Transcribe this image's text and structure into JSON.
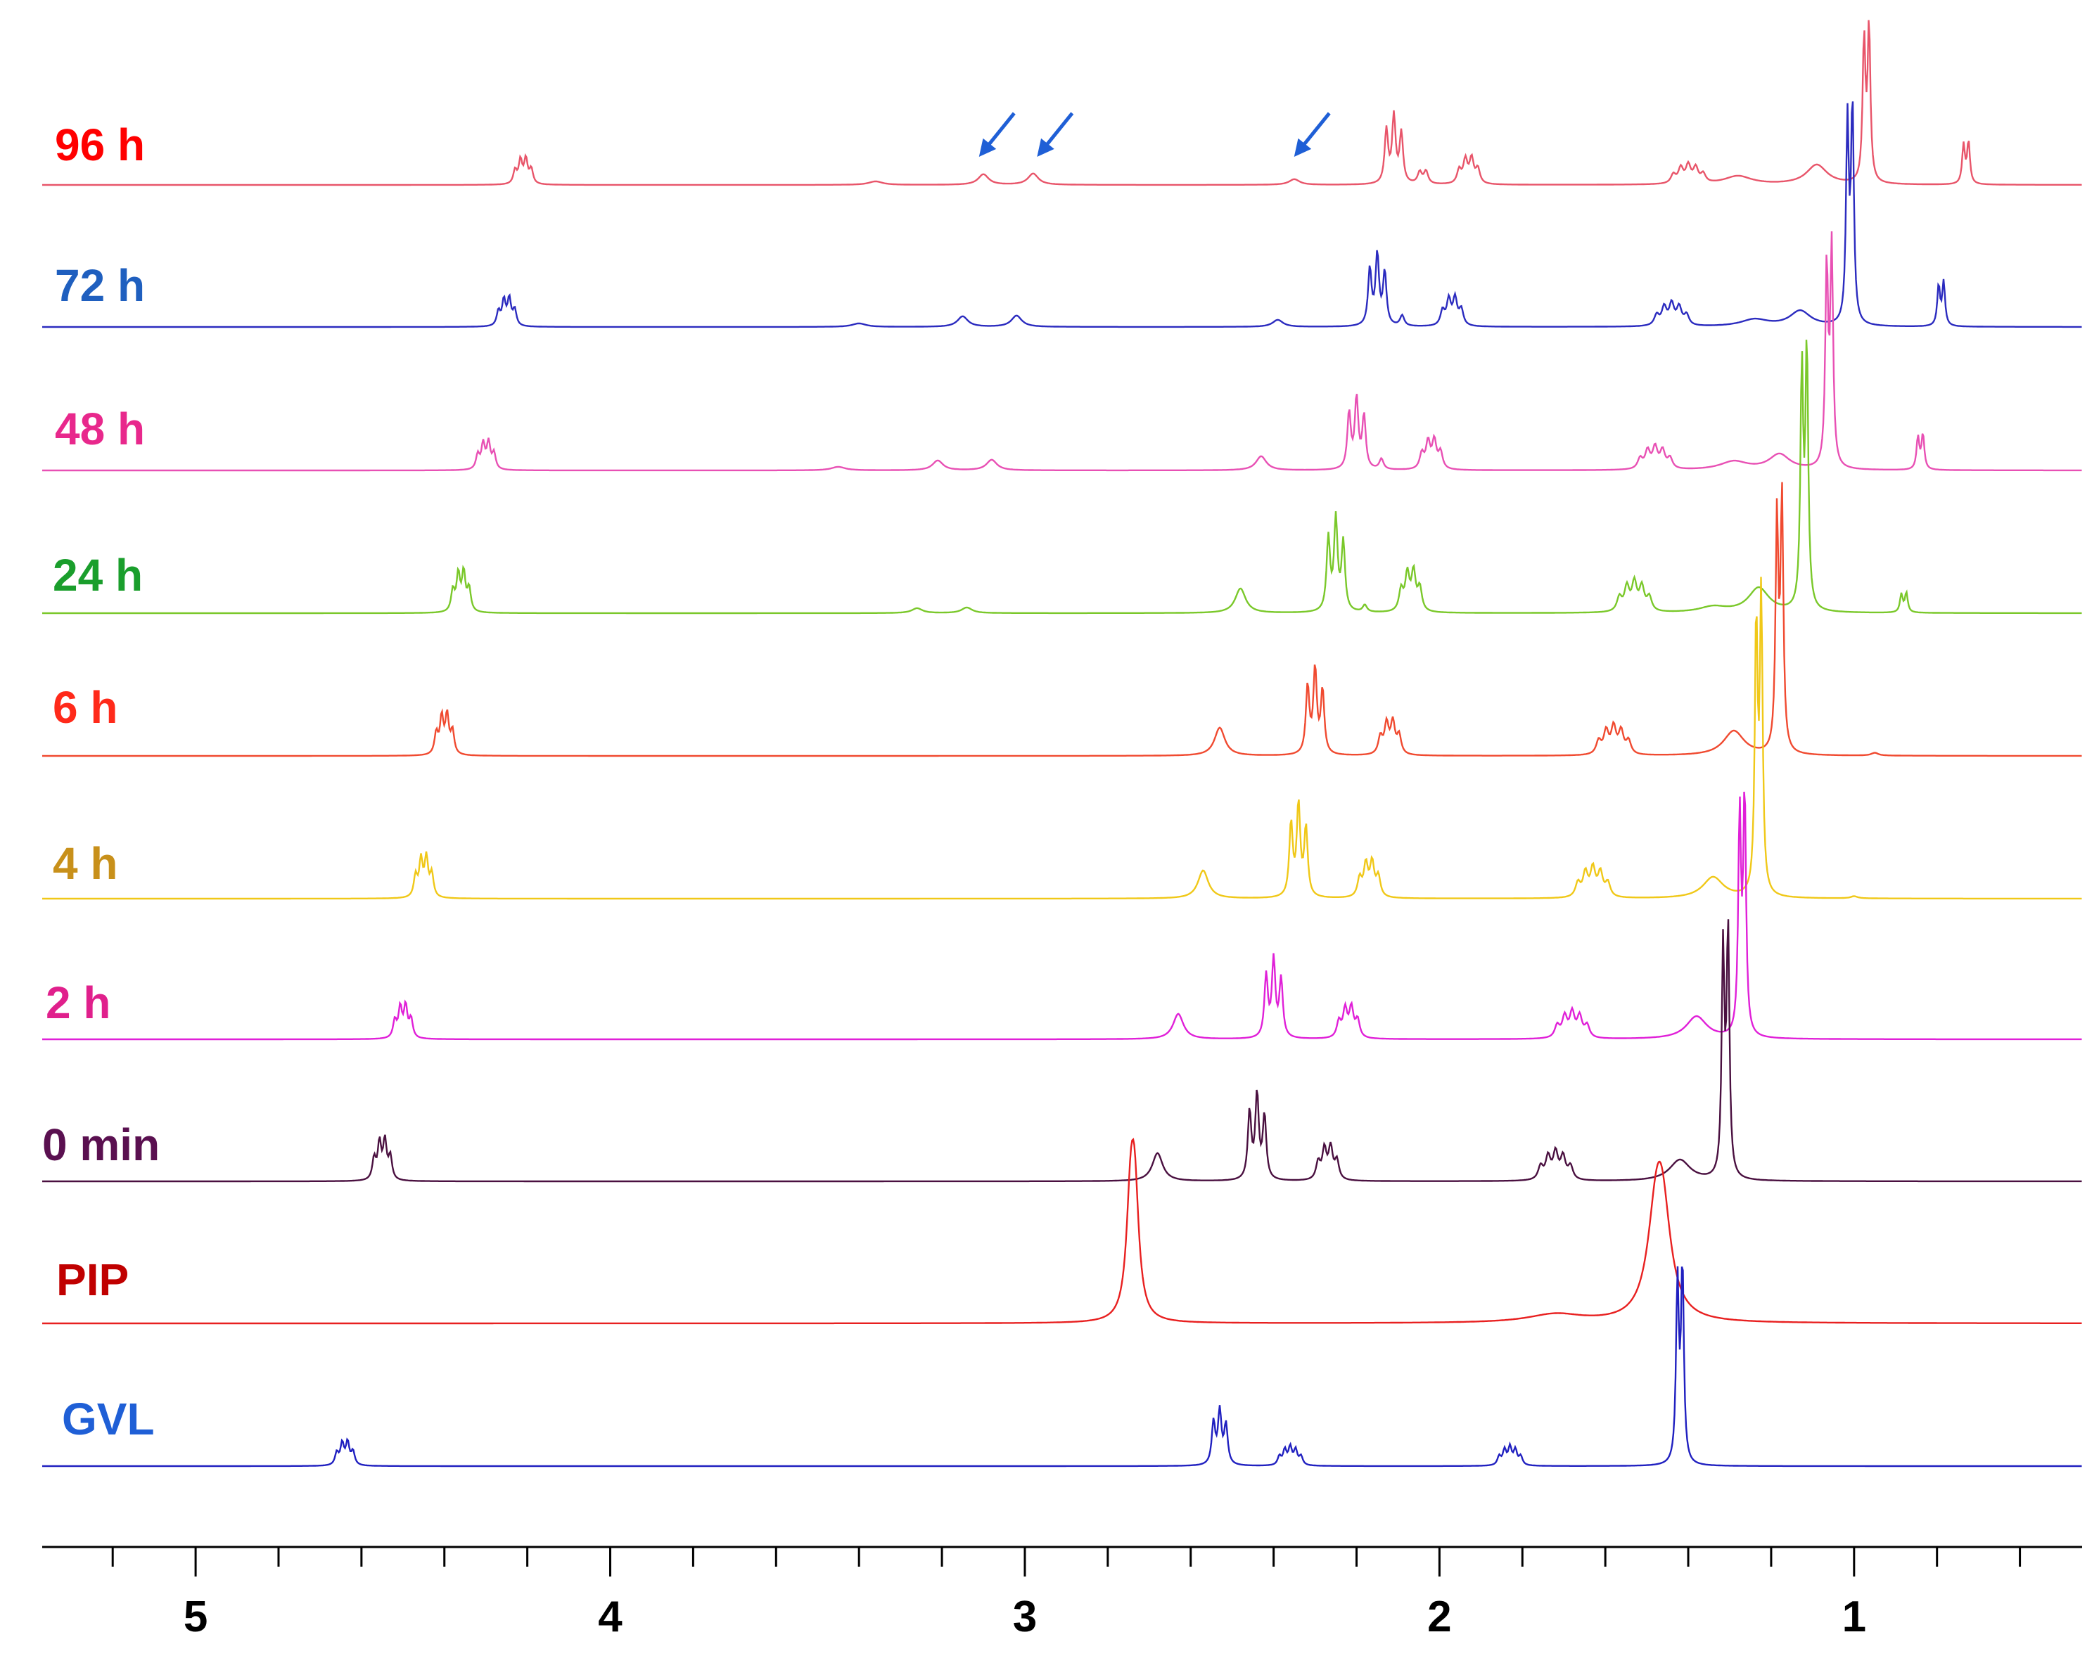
{
  "chart_data": {
    "type": "line",
    "title": "",
    "xlabel": "",
    "ylabel": "",
    "x_reversed": true,
    "xlim": [
      5.37,
      0.45
    ],
    "x_ticks_major": [
      5,
      4,
      3,
      2,
      1
    ],
    "x_tick_labels": [
      "5",
      "4",
      "3",
      "2",
      "1"
    ],
    "grid": false,
    "legend": "none",
    "series": [
      {
        "name": "96 h",
        "color": "#ff0000",
        "trace_color": "#e8556a",
        "peaks": [
          {
            "ppm": 4.21,
            "height": 0.35,
            "mult": 4,
            "sp": 0.013,
            "w": 0.005
          },
          {
            "ppm": 3.36,
            "height": 0.05,
            "mult": 1,
            "sp": 0,
            "w": 0.02
          },
          {
            "ppm": 3.1,
            "height": 0.15,
            "mult": 1,
            "sp": 0,
            "w": 0.015
          },
          {
            "ppm": 2.98,
            "height": 0.16,
            "mult": 1,
            "sp": 0,
            "w": 0.015
          },
          {
            "ppm": 2.35,
            "height": 0.08,
            "mult": 1,
            "sp": 0,
            "w": 0.015
          },
          {
            "ppm": 2.11,
            "height": 0.95,
            "mult": 3,
            "sp": 0.018,
            "w": 0.005
          },
          {
            "ppm": 2.04,
            "height": 0.18,
            "mult": 2,
            "sp": 0.015,
            "w": 0.006
          },
          {
            "ppm": 1.93,
            "height": 0.35,
            "mult": 4,
            "sp": 0.015,
            "w": 0.006
          },
          {
            "ppm": 1.4,
            "height": 0.25,
            "mult": 5,
            "sp": 0.018,
            "w": 0.007
          },
          {
            "ppm": 1.28,
            "height": 0.12,
            "mult": 1,
            "sp": 0,
            "w": 0.04
          },
          {
            "ppm": 1.09,
            "height": 0.28,
            "mult": 1,
            "sp": 0,
            "w": 0.03
          },
          {
            "ppm": 0.97,
            "height": 2.2,
            "mult": 2,
            "sp": 0.012,
            "w": 0.004
          },
          {
            "ppm": 0.73,
            "height": 0.6,
            "mult": 2,
            "sp": 0.012,
            "w": 0.004
          }
        ]
      },
      {
        "name": "72 h",
        "color": "#1f5fbf",
        "trace_color": "#2b2bbf",
        "peaks": [
          {
            "ppm": 4.25,
            "height": 0.38,
            "mult": 4,
            "sp": 0.013,
            "w": 0.005
          },
          {
            "ppm": 3.4,
            "height": 0.05,
            "mult": 1,
            "sp": 0,
            "w": 0.02
          },
          {
            "ppm": 3.15,
            "height": 0.15,
            "mult": 1,
            "sp": 0,
            "w": 0.015
          },
          {
            "ppm": 3.02,
            "height": 0.16,
            "mult": 1,
            "sp": 0,
            "w": 0.015
          },
          {
            "ppm": 2.39,
            "height": 0.1,
            "mult": 1,
            "sp": 0,
            "w": 0.015
          },
          {
            "ppm": 2.15,
            "height": 1.0,
            "mult": 3,
            "sp": 0.018,
            "w": 0.005
          },
          {
            "ppm": 2.09,
            "height": 0.15,
            "mult": 1,
            "sp": 0,
            "w": 0.006
          },
          {
            "ppm": 1.97,
            "height": 0.38,
            "mult": 4,
            "sp": 0.015,
            "w": 0.006
          },
          {
            "ppm": 1.44,
            "height": 0.3,
            "mult": 5,
            "sp": 0.018,
            "w": 0.007
          },
          {
            "ppm": 1.24,
            "height": 0.1,
            "mult": 1,
            "sp": 0,
            "w": 0.04
          },
          {
            "ppm": 1.13,
            "height": 0.22,
            "mult": 1,
            "sp": 0,
            "w": 0.03
          },
          {
            "ppm": 1.01,
            "height": 3.1,
            "mult": 2,
            "sp": 0.012,
            "w": 0.004
          },
          {
            "ppm": 0.79,
            "height": 0.62,
            "mult": 2,
            "sp": 0.012,
            "w": 0.004
          }
        ]
      },
      {
        "name": "48 h",
        "color": "#e8288c",
        "trace_color": "#e850b4",
        "peaks": [
          {
            "ppm": 4.3,
            "height": 0.38,
            "mult": 4,
            "sp": 0.013,
            "w": 0.005
          },
          {
            "ppm": 3.45,
            "height": 0.05,
            "mult": 1,
            "sp": 0,
            "w": 0.02
          },
          {
            "ppm": 3.21,
            "height": 0.14,
            "mult": 1,
            "sp": 0,
            "w": 0.015
          },
          {
            "ppm": 3.08,
            "height": 0.15,
            "mult": 1,
            "sp": 0,
            "w": 0.015
          },
          {
            "ppm": 2.43,
            "height": 0.2,
            "mult": 1,
            "sp": 0,
            "w": 0.015
          },
          {
            "ppm": 2.2,
            "height": 1.0,
            "mult": 3,
            "sp": 0.018,
            "w": 0.005
          },
          {
            "ppm": 2.14,
            "height": 0.15,
            "mult": 1,
            "sp": 0,
            "w": 0.006
          },
          {
            "ppm": 2.02,
            "height": 0.4,
            "mult": 4,
            "sp": 0.015,
            "w": 0.006
          },
          {
            "ppm": 1.48,
            "height": 0.3,
            "mult": 5,
            "sp": 0.018,
            "w": 0.007
          },
          {
            "ppm": 1.29,
            "height": 0.12,
            "mult": 1,
            "sp": 0,
            "w": 0.04
          },
          {
            "ppm": 1.18,
            "height": 0.22,
            "mult": 1,
            "sp": 0,
            "w": 0.03
          },
          {
            "ppm": 1.06,
            "height": 3.1,
            "mult": 2,
            "sp": 0.012,
            "w": 0.004
          },
          {
            "ppm": 0.84,
            "height": 0.5,
            "mult": 2,
            "sp": 0.012,
            "w": 0.004
          }
        ]
      },
      {
        "name": "24 h",
        "color": "#1a9e2c",
        "trace_color": "#7ac82a",
        "peaks": [
          {
            "ppm": 4.36,
            "height": 0.55,
            "mult": 4,
            "sp": 0.013,
            "w": 0.005
          },
          {
            "ppm": 3.26,
            "height": 0.07,
            "mult": 1,
            "sp": 0,
            "w": 0.015
          },
          {
            "ppm": 3.14,
            "height": 0.08,
            "mult": 1,
            "sp": 0,
            "w": 0.015
          },
          {
            "ppm": 2.48,
            "height": 0.35,
            "mult": 1,
            "sp": 0,
            "w": 0.015
          },
          {
            "ppm": 2.25,
            "height": 1.3,
            "mult": 3,
            "sp": 0.018,
            "w": 0.005
          },
          {
            "ppm": 2.18,
            "height": 0.1,
            "mult": 1,
            "sp": 0,
            "w": 0.006
          },
          {
            "ppm": 2.07,
            "height": 0.55,
            "mult": 4,
            "sp": 0.015,
            "w": 0.006
          },
          {
            "ppm": 1.53,
            "height": 0.4,
            "mult": 5,
            "sp": 0.018,
            "w": 0.007
          },
          {
            "ppm": 1.34,
            "height": 0.08,
            "mult": 1,
            "sp": 0,
            "w": 0.04
          },
          {
            "ppm": 1.23,
            "height": 0.35,
            "mult": 1,
            "sp": 0,
            "w": 0.03
          },
          {
            "ppm": 1.12,
            "height": 3.7,
            "mult": 2,
            "sp": 0.012,
            "w": 0.004
          },
          {
            "ppm": 0.88,
            "height": 0.28,
            "mult": 2,
            "sp": 0.012,
            "w": 0.004
          }
        ]
      },
      {
        "name": "6 h",
        "color": "#ff2a1a",
        "trace_color": "#f04a30",
        "peaks": [
          {
            "ppm": 4.4,
            "height": 0.55,
            "mult": 4,
            "sp": 0.013,
            "w": 0.005
          },
          {
            "ppm": 2.53,
            "height": 0.4,
            "mult": 1,
            "sp": 0,
            "w": 0.015
          },
          {
            "ppm": 2.3,
            "height": 1.2,
            "mult": 3,
            "sp": 0.018,
            "w": 0.005
          },
          {
            "ppm": 2.12,
            "height": 0.45,
            "mult": 4,
            "sp": 0.015,
            "w": 0.006
          },
          {
            "ppm": 1.58,
            "height": 0.38,
            "mult": 5,
            "sp": 0.018,
            "w": 0.007
          },
          {
            "ppm": 1.29,
            "height": 0.35,
            "mult": 1,
            "sp": 0,
            "w": 0.03
          },
          {
            "ppm": 1.18,
            "height": 3.6,
            "mult": 2,
            "sp": 0.012,
            "w": 0.004
          },
          {
            "ppm": 0.95,
            "height": 0.04,
            "mult": 1,
            "sp": 0,
            "w": 0.01
          }
        ]
      },
      {
        "name": "4 h",
        "color": "#c8901a",
        "trace_color": "#f0c818",
        "peaks": [
          {
            "ppm": 4.45,
            "height": 0.55,
            "mult": 4,
            "sp": 0.013,
            "w": 0.005
          },
          {
            "ppm": 2.57,
            "height": 0.4,
            "mult": 1,
            "sp": 0,
            "w": 0.015
          },
          {
            "ppm": 2.34,
            "height": 1.3,
            "mult": 3,
            "sp": 0.018,
            "w": 0.005
          },
          {
            "ppm": 2.17,
            "height": 0.48,
            "mult": 4,
            "sp": 0.015,
            "w": 0.006
          },
          {
            "ppm": 1.63,
            "height": 0.4,
            "mult": 5,
            "sp": 0.018,
            "w": 0.007
          },
          {
            "ppm": 1.34,
            "height": 0.3,
            "mult": 1,
            "sp": 0,
            "w": 0.03
          },
          {
            "ppm": 1.23,
            "height": 4.2,
            "mult": 2,
            "sp": 0.012,
            "w": 0.004
          },
          {
            "ppm": 1.0,
            "height": 0.03,
            "mult": 1,
            "sp": 0,
            "w": 0.01
          }
        ]
      },
      {
        "name": "2 h",
        "color": "#e0208c",
        "trace_color": "#e020d8",
        "peaks": [
          {
            "ppm": 4.5,
            "height": 0.45,
            "mult": 4,
            "sp": 0.013,
            "w": 0.005
          },
          {
            "ppm": 2.63,
            "height": 0.36,
            "mult": 1,
            "sp": 0,
            "w": 0.015
          },
          {
            "ppm": 2.4,
            "height": 1.1,
            "mult": 3,
            "sp": 0.018,
            "w": 0.005
          },
          {
            "ppm": 2.22,
            "height": 0.42,
            "mult": 4,
            "sp": 0.015,
            "w": 0.006
          },
          {
            "ppm": 1.68,
            "height": 0.35,
            "mult": 5,
            "sp": 0.018,
            "w": 0.007
          },
          {
            "ppm": 1.38,
            "height": 0.32,
            "mult": 1,
            "sp": 0,
            "w": 0.03
          },
          {
            "ppm": 1.27,
            "height": 3.4,
            "mult": 2,
            "sp": 0.012,
            "w": 0.004
          }
        ]
      },
      {
        "name": "0 min",
        "color": "#5a1050",
        "trace_color": "#4a1040",
        "peaks": [
          {
            "ppm": 4.55,
            "height": 0.55,
            "mult": 4,
            "sp": 0.013,
            "w": 0.005
          },
          {
            "ppm": 2.68,
            "height": 0.4,
            "mult": 1,
            "sp": 0,
            "w": 0.015
          },
          {
            "ppm": 2.44,
            "height": 1.2,
            "mult": 3,
            "sp": 0.018,
            "w": 0.005
          },
          {
            "ppm": 2.27,
            "height": 0.45,
            "mult": 4,
            "sp": 0.015,
            "w": 0.006
          },
          {
            "ppm": 1.72,
            "height": 0.38,
            "mult": 5,
            "sp": 0.018,
            "w": 0.007
          },
          {
            "ppm": 1.42,
            "height": 0.3,
            "mult": 1,
            "sp": 0,
            "w": 0.03
          },
          {
            "ppm": 1.31,
            "height": 3.5,
            "mult": 2,
            "sp": 0.012,
            "w": 0.004
          }
        ]
      },
      {
        "name": "PIP",
        "color": "#c00000",
        "trace_color": "#e82020",
        "peaks": [
          {
            "ppm": 2.74,
            "height": 1.6,
            "mult": 2,
            "sp": 0.01,
            "w": 0.012
          },
          {
            "ppm": 1.72,
            "height": 0.12,
            "mult": 1,
            "sp": 0,
            "w": 0.08
          },
          {
            "ppm": 1.47,
            "height": 1.3,
            "mult": 2,
            "sp": 0.015,
            "w": 0.025
          }
        ]
      },
      {
        "name": "GVL",
        "color": "#1f5fd6",
        "trace_color": "#2020c0",
        "peaks": [
          {
            "ppm": 4.64,
            "height": 0.32,
            "mult": 4,
            "sp": 0.013,
            "w": 0.005
          },
          {
            "ppm": 2.53,
            "height": 0.75,
            "mult": 3,
            "sp": 0.015,
            "w": 0.005
          },
          {
            "ppm": 2.36,
            "height": 0.25,
            "mult": 5,
            "sp": 0.013,
            "w": 0.005
          },
          {
            "ppm": 1.83,
            "height": 0.25,
            "mult": 5,
            "sp": 0.013,
            "w": 0.005
          },
          {
            "ppm": 1.42,
            "height": 2.8,
            "mult": 2,
            "sp": 0.012,
            "w": 0.004
          }
        ]
      }
    ],
    "annotations": [
      {
        "type": "arrow",
        "ppm": 3.08,
        "trace": "96 h",
        "color": "#1f5fd6"
      },
      {
        "type": "arrow",
        "ppm": 2.94,
        "trace": "96 h",
        "color": "#1f5fd6"
      },
      {
        "type": "arrow",
        "ppm": 2.32,
        "trace": "96 h",
        "color": "#1f5fd6"
      }
    ]
  }
}
